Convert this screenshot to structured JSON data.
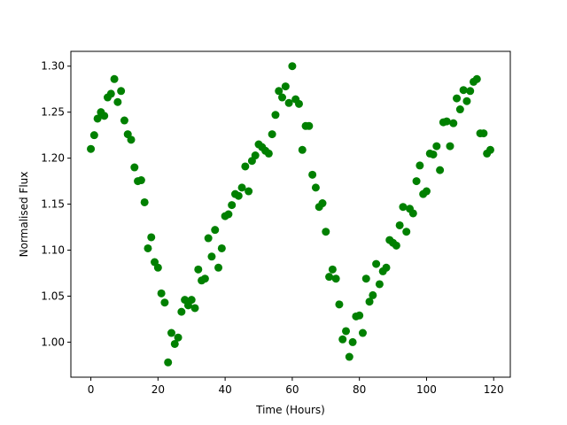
{
  "chart_data": {
    "type": "scatter",
    "xlabel": "Time (Hours)",
    "ylabel": "Normalised Flux",
    "color": "#008000",
    "x": [
      0,
      1,
      2,
      3,
      4,
      5,
      6,
      7,
      8,
      9,
      10,
      11,
      12,
      13,
      14,
      15,
      16,
      17,
      18,
      19,
      20,
      21,
      22,
      23,
      24,
      25,
      26,
      27,
      28,
      29,
      30,
      31,
      32,
      33,
      34,
      35,
      36,
      37,
      38,
      39,
      40,
      41,
      42,
      43,
      44,
      45,
      46,
      47,
      48,
      49,
      50,
      51,
      52,
      53,
      54,
      55,
      56,
      57,
      58,
      59,
      60,
      61,
      62,
      63,
      64,
      65,
      66,
      67,
      68,
      69,
      70,
      71,
      72,
      73,
      74,
      75,
      76,
      77,
      78,
      79,
      80,
      81,
      82,
      83,
      84,
      85,
      86,
      87,
      88,
      89,
      90,
      91,
      92,
      93,
      94,
      95,
      96,
      97,
      98,
      99,
      100,
      101,
      102,
      103,
      104,
      105,
      106,
      107,
      108,
      109,
      110,
      111,
      112,
      113,
      114,
      115,
      116,
      117,
      118,
      119
    ],
    "values": [
      1.21,
      1.225,
      1.243,
      1.25,
      1.246,
      1.266,
      1.27,
      1.286,
      1.261,
      1.273,
      1.241,
      1.226,
      1.22,
      1.19,
      1.175,
      1.176,
      1.152,
      1.102,
      1.114,
      1.087,
      1.081,
      1.053,
      1.043,
      0.978,
      1.01,
      0.998,
      1.005,
      1.033,
      1.046,
      1.04,
      1.046,
      1.037,
      1.079,
      1.067,
      1.069,
      1.113,
      1.093,
      1.122,
      1.081,
      1.102,
      1.137,
      1.139,
      1.149,
      1.161,
      1.159,
      1.168,
      1.191,
      1.164,
      1.197,
      1.203,
      1.215,
      1.212,
      1.208,
      1.205,
      1.226,
      1.247,
      1.273,
      1.266,
      1.278,
      1.26,
      1.3,
      1.264,
      1.259,
      1.209,
      1.235,
      1.235,
      1.182,
      1.168,
      1.147,
      1.151,
      1.12,
      1.071,
      1.079,
      1.069,
      1.041,
      1.003,
      1.012,
      0.984,
      1.0,
      1.028,
      1.029,
      1.01,
      1.069,
      1.044,
      1.051,
      1.085,
      1.063,
      1.077,
      1.081,
      1.111,
      1.108,
      1.105,
      1.127,
      1.147,
      1.12,
      1.145,
      1.14,
      1.175,
      1.192,
      1.161,
      1.164,
      1.205,
      1.204,
      1.213,
      1.187,
      1.239,
      1.24,
      1.213,
      1.238,
      1.265,
      1.253,
      1.274,
      1.262,
      1.273,
      1.283,
      1.286,
      1.227,
      1.227,
      1.205,
      1.209
    ],
    "xlim": [
      -5.95,
      124.95
    ],
    "xticks": [
      0,
      20,
      40,
      60,
      80,
      100,
      120
    ],
    "ylim": [
      0.9619,
      1.3161
    ],
    "yticks": [
      {
        "value": 1,
        "label": "1.00"
      },
      1.05,
      {
        "value": 1.1,
        "label": "1.10"
      },
      1.15,
      {
        "value": 1.2,
        "label": "1.20"
      },
      1.25,
      {
        "value": 1.3,
        "label": "1.30"
      }
    ]
  }
}
